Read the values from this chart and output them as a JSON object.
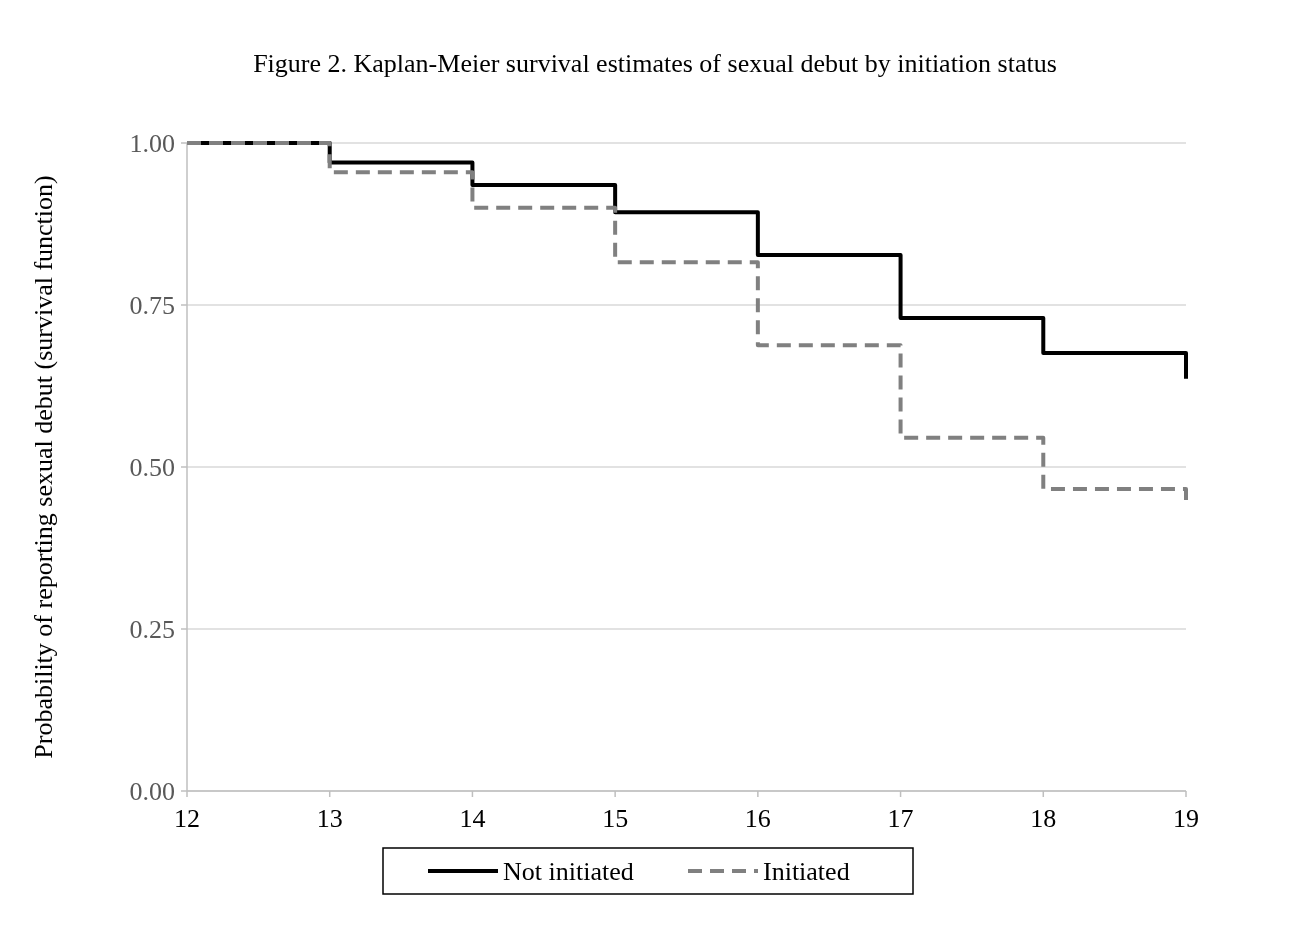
{
  "chart_data": {
    "type": "step",
    "title": "Figure 2. Kaplan-Meier survival estimates of sexual debut by initiation status",
    "ylabel": "Probability of reporting sexual debut (survival function)",
    "xlim": [
      12,
      19
    ],
    "xticks": [
      12,
      13,
      14,
      15,
      16,
      17,
      18,
      19
    ],
    "ylim": [
      0,
      1
    ],
    "yticks": [
      {
        "value": 0,
        "label": "0.00"
      },
      {
        "value": 0.25,
        "label": "0.25"
      },
      {
        "value": 0.5,
        "label": "0.50"
      },
      {
        "value": 0.75,
        "label": "0.75"
      },
      {
        "value": 1,
        "label": "1.00"
      }
    ],
    "grid": "y",
    "legend": "bottom",
    "series": [
      {
        "name": "Not initiated",
        "color": "#000000",
        "line_style": "solid",
        "x": [
          12,
          13,
          14,
          15,
          16,
          17,
          18,
          19,
          19
        ],
        "values": [
          1,
          0.97,
          0.935,
          0.893,
          0.827,
          0.73,
          0.676,
          0.676,
          0.636
        ]
      },
      {
        "name": "Initiated",
        "color": "#808080",
        "line_style": "dashed",
        "x": [
          12,
          13,
          14,
          15,
          16,
          17,
          18,
          19,
          19
        ],
        "values": [
          1,
          0.955,
          0.9,
          0.816,
          0.688,
          0.545,
          0.466,
          0.466,
          0.44
        ]
      }
    ]
  }
}
